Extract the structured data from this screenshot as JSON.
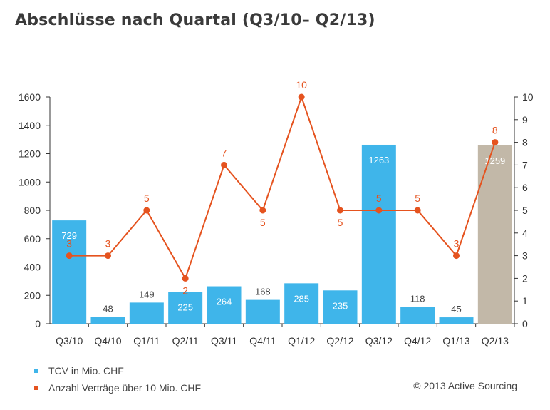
{
  "title": "Abschlüsse nach Quartal (Q3/10– Q2/13)",
  "copyright": "© 2013 Active Sourcing",
  "colors": {
    "bar": "#3fb5ea",
    "bar_highlight": "#c2b8a8",
    "line": "#e5531f",
    "axis": "#333333"
  },
  "chart_data": {
    "type": "bar",
    "title": "Abschlüsse nach Quartal (Q3/10– Q2/13)",
    "categories": [
      "Q3/10",
      "Q4/10",
      "Q1/11",
      "Q2/11",
      "Q3/11",
      "Q4/11",
      "Q1/12",
      "Q2/12",
      "Q3/12",
      "Q4/12",
      "Q1/13",
      "Q2/13"
    ],
    "ylim_left": [
      0,
      1600
    ],
    "yticks_left": [
      0,
      200,
      400,
      600,
      800,
      1000,
      1200,
      1400,
      1600
    ],
    "ylim_right": [
      0,
      10
    ],
    "yticks_right": [
      0,
      1,
      2,
      3,
      4,
      5,
      6,
      7,
      8,
      9,
      10
    ],
    "grid": false,
    "legend_position": "bottom-left",
    "series": [
      {
        "name": "TCV in Mio. CHF",
        "type": "bar",
        "axis": "left",
        "values": [
          729,
          48,
          149,
          225,
          264,
          168,
          285,
          235,
          1263,
          118,
          45,
          1259
        ],
        "highlight_last": true
      },
      {
        "name": "Anzahl Verträge über 10 Mio. CHF",
        "type": "line",
        "axis": "right",
        "values": [
          3,
          3,
          5,
          2,
          7,
          5,
          10,
          5,
          5,
          5,
          3,
          8
        ]
      }
    ]
  }
}
